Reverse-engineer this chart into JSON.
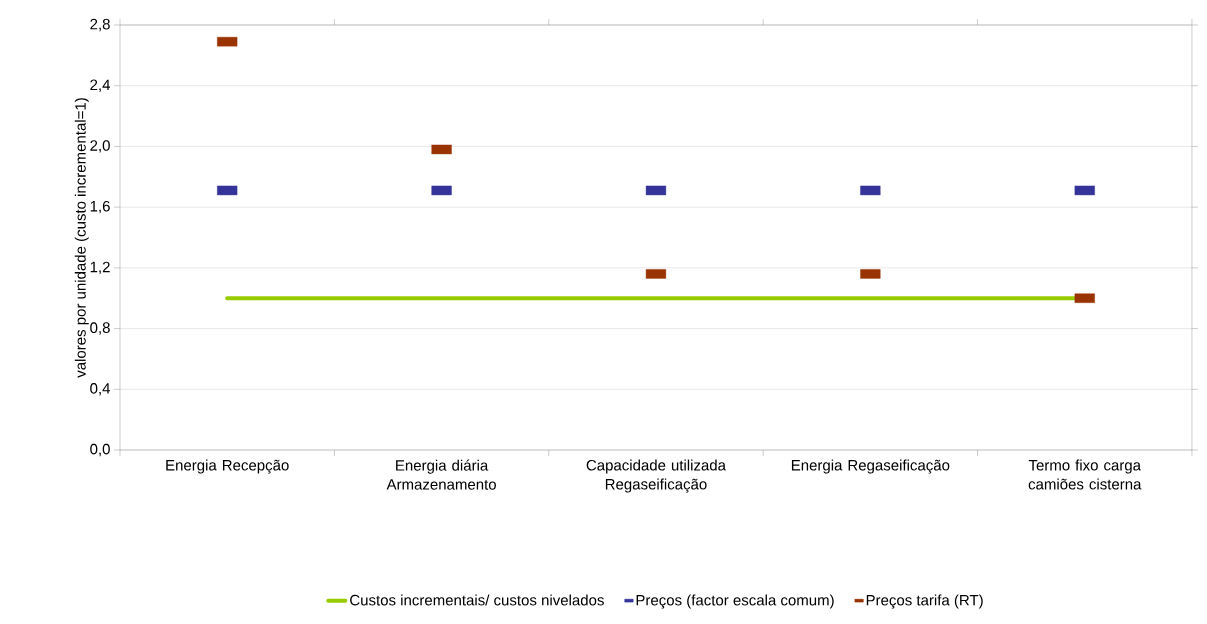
{
  "chart_data": {
    "type": "line",
    "ylabel": "valores por unidade (custo incremental=1)",
    "categories": [
      "Energia Recepção",
      "Energia diária Armazenamento",
      "Capacidade utilizada Regaseificação",
      "Energia Regaseificação",
      "Termo fixo carga camiões cisterna"
    ],
    "series": [
      {
        "name": "Custos incrementais/ custos nivelados",
        "color": "#99cc00",
        "values": [
          1.0,
          1.0,
          1.0,
          1.0,
          1.0
        ]
      },
      {
        "name": "Preços (factor escala comum)",
        "type": "scatter",
        "color": "#333399",
        "values": [
          1.71,
          1.71,
          1.71,
          1.71,
          1.71
        ]
      },
      {
        "name": "Preços tarifa (RT)",
        "type": "scatter",
        "color": "#993300",
        "values": [
          2.69,
          1.98,
          1.16,
          1.16,
          1.0
        ]
      }
    ],
    "ylim": [
      0,
      2.8
    ],
    "yticks": [
      {
        "value": 0,
        "label": "0,0"
      },
      {
        "value": 0.4,
        "label": "0,4"
      },
      {
        "value": 0.8,
        "label": "0,8"
      },
      {
        "value": 1.2,
        "label": "1,2"
      },
      {
        "value": 1.6,
        "label": "1,6"
      },
      {
        "value": 2.0,
        "label": "2,0"
      },
      {
        "value": 2.4,
        "label": "2,4"
      },
      {
        "value": 2.8,
        "label": "2,8"
      }
    ],
    "grid": "y",
    "legend": "bottom"
  }
}
